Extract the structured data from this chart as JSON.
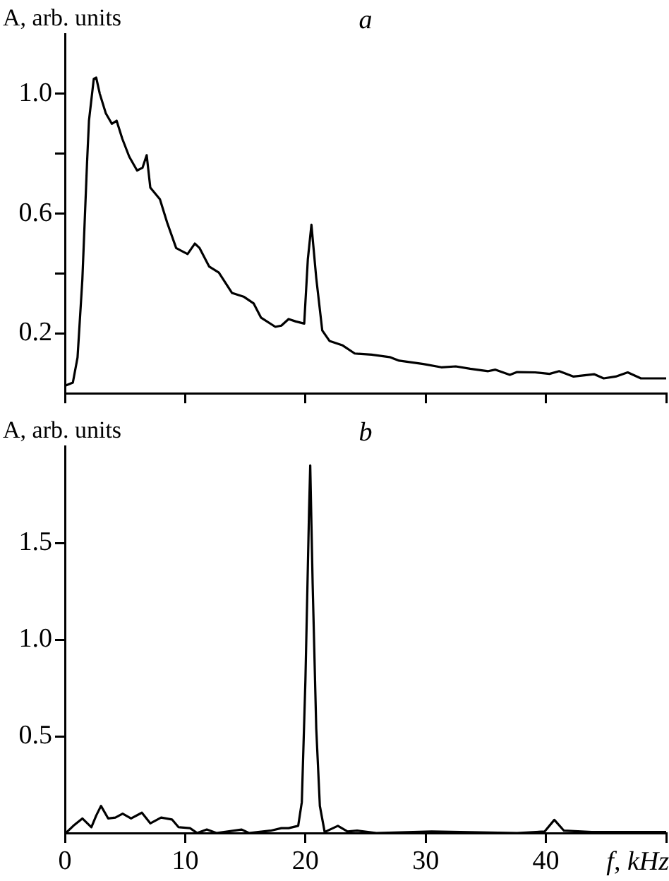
{
  "chart_data": [
    {
      "type": "line",
      "title": "a",
      "ylabel": "A, arb. units",
      "tick_labels": "y",
      "xlim": [
        0,
        50
      ],
      "xticks": [
        {
          "value": 0,
          "label": null
        },
        {
          "value": 10,
          "label": null
        },
        {
          "value": 20,
          "label": null
        },
        {
          "value": 30,
          "label": null
        },
        {
          "value": 40,
          "label": null
        },
        {
          "value": 50,
          "label": null
        }
      ],
      "ylim": [
        0,
        1.2
      ],
      "yticks": [
        0.2,
        {
          "value": 0.4,
          "label": null
        },
        0.6,
        {
          "value": 0.8,
          "label": null
        },
        {
          "value": 1,
          "label": "1.0"
        }
      ],
      "x": [
        0,
        0.66,
        1.05,
        1.45,
        1.84,
        2.0,
        2.4,
        2.6,
        2.9,
        3.4,
        3.9,
        4.3,
        4.77,
        5.35,
        6.0,
        6.45,
        6.8,
        7.1,
        7.9,
        8.5,
        9.25,
        10.2,
        10.8,
        11.2,
        12.0,
        12.8,
        13.9,
        14.9,
        15.7,
        16.3,
        17.5,
        18.0,
        18.6,
        19.2,
        19.9,
        20.2,
        20.5,
        20.9,
        21.4,
        22.0,
        23.1,
        24.1,
        25.5,
        27.0,
        27.8,
        29.8,
        31.3,
        32.5,
        33.7,
        35.2,
        35.8,
        37.0,
        37.6,
        39.1,
        40.3,
        41.1,
        42.3,
        44.0,
        44.8,
        45.8,
        46.8,
        47.9,
        50.0
      ],
      "series": [
        {
          "color": "#000000",
          "values": [
            0.025,
            0.036,
            0.12,
            0.38,
            0.77,
            0.91,
            1.05,
            1.054,
            1.0,
            0.935,
            0.9,
            0.91,
            0.85,
            0.79,
            0.744,
            0.753,
            0.795,
            0.687,
            0.648,
            0.57,
            0.485,
            0.465,
            0.5,
            0.485,
            0.423,
            0.403,
            0.335,
            0.322,
            0.3,
            0.253,
            0.222,
            0.226,
            0.248,
            0.24,
            0.233,
            0.447,
            0.563,
            0.385,
            0.21,
            0.175,
            0.16,
            0.133,
            0.129,
            0.121,
            0.109,
            0.098,
            0.087,
            0.09,
            0.082,
            0.074,
            0.079,
            0.062,
            0.071,
            0.07,
            0.065,
            0.074,
            0.056,
            0.064,
            0.05,
            0.056,
            0.07,
            0.05,
            0.05
          ]
        }
      ]
    },
    {
      "type": "line",
      "title": "b",
      "ylabel": "A, arb. units",
      "xlabel": "f, kHz",
      "xlim": [
        0,
        50
      ],
      "xticks": [
        0,
        10,
        20,
        30,
        40,
        {
          "value": 50,
          "label": null
        }
      ],
      "ylim": [
        0,
        2
      ],
      "yticks": [
        0.5,
        {
          "value": 1,
          "label": "1.0"
        },
        1.5
      ],
      "x": [
        0.08,
        0.7,
        1.45,
        2.2,
        2.6,
        3.0,
        3.6,
        4.2,
        4.8,
        5.5,
        6.4,
        7.1,
        8.0,
        8.9,
        9.45,
        10.4,
        11.0,
        11.8,
        12.6,
        14.7,
        15.3,
        17.1,
        18.0,
        18.6,
        19.4,
        19.7,
        20.0,
        20.3,
        20.4,
        20.6,
        20.9,
        21.2,
        21.6,
        22.7,
        23.5,
        24.3,
        25.9,
        30.5,
        37.6,
        39.9,
        40.7,
        41.5,
        43.8,
        50.0
      ],
      "series": [
        {
          "color": "#000000",
          "values": [
            0,
            0.037,
            0.075,
            0.03,
            0.09,
            0.14,
            0.075,
            0.08,
            0.1,
            0.075,
            0.105,
            0.05,
            0.08,
            0.07,
            0.03,
            0.025,
            0,
            0.018,
            0,
            0.018,
            0,
            0.012,
            0.025,
            0.025,
            0.037,
            0.16,
            0.79,
            1.66,
            1.9,
            1.29,
            0.54,
            0.14,
            0.005,
            0.037,
            0.008,
            0.012,
            0,
            0.008,
            0,
            0.008,
            0.068,
            0.012,
            0.005,
            0.005
          ]
        }
      ]
    }
  ]
}
